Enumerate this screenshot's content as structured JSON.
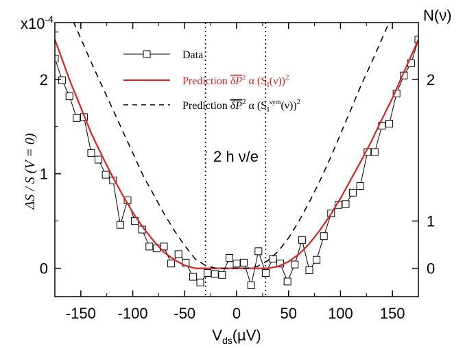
{
  "chart_data": {
    "type": "scatter",
    "xlabel_main": "V",
    "xlabel_sub": "ds",
    "xlabel_unit": "(µV)",
    "ylabel_text": "ΔS / S (V = 0)",
    "exponent_label": "x10",
    "exponent_power": "-4",
    "right_axis_label": "N(ν)",
    "xlim": [
      -175,
      175
    ],
    "ylim": [
      -0.3,
      2.6
    ],
    "xticks": [
      -150,
      -100,
      -50,
      0,
      50,
      100,
      150
    ],
    "xtick_labels": [
      "-150",
      "-100",
      "-50",
      "0",
      "50",
      "100",
      "150"
    ],
    "yticks": [
      0,
      1,
      2
    ],
    "ytick_labels": [
      "0",
      "1",
      "2"
    ],
    "right_ticks": [
      0,
      0.5,
      2
    ],
    "right_tick_labels": [
      "0",
      "1",
      "2"
    ],
    "annotation_text": "2 h ν/e",
    "annotation_x_range": [
      -30,
      28
    ],
    "annotation_y": 1.23,
    "vlines_x": [
      -30,
      28
    ],
    "series": [
      {
        "name": "Data",
        "style": "markers-line",
        "color": "#000000",
        "x": [
          -175,
          -168,
          -161,
          -154,
          -147,
          -140,
          -133,
          -126,
          -119,
          -112,
          -105,
          -98,
          -91,
          -84,
          -77,
          -70,
          -63,
          -56,
          -49,
          -42,
          -35,
          -28,
          -21,
          -14,
          -7,
          0,
          7,
          14,
          21,
          28,
          35,
          42,
          49,
          56,
          63,
          70,
          77,
          84,
          91,
          98,
          105,
          112,
          119,
          126,
          133,
          140,
          147,
          154,
          161,
          168,
          175
        ],
        "y": [
          2.22,
          1.99,
          1.82,
          1.59,
          1.6,
          1.22,
          1.15,
          0.99,
          0.93,
          0.46,
          0.72,
          0.5,
          0.41,
          0.23,
          0.21,
          0.23,
          0.05,
          0.15,
          0.06,
          -0.09,
          -0.15,
          -0.05,
          -0.06,
          -0.07,
          0.11,
          0.05,
          0.06,
          -0.18,
          0.18,
          -0.05,
          0.1,
          0.05,
          -0.14,
          0.04,
          0.3,
          -0.02,
          0.09,
          0.34,
          0.58,
          0.67,
          0.68,
          0.8,
          0.87,
          1.23,
          1.23,
          1.51,
          1.53,
          1.85,
          2.04,
          2.17,
          2.42
        ]
      },
      {
        "name": "Prediction",
        "style": "solid",
        "color": "#e02020",
        "x": [
          -175,
          -160,
          -150,
          -140,
          -130,
          -120,
          -110,
          -100,
          -90,
          -80,
          -70,
          -60,
          -50,
          -40,
          -30,
          -20,
          -10,
          0,
          10,
          20,
          30,
          40,
          50,
          60,
          70,
          80,
          90,
          100,
          110,
          120,
          130,
          140,
          150,
          160,
          175
        ],
        "y": [
          2.42,
          1.97,
          1.7,
          1.43,
          1.2,
          0.98,
          0.78,
          0.59,
          0.43,
          0.29,
          0.17,
          0.09,
          0.03,
          0.0,
          0.0,
          0.0,
          0.0,
          0.0,
          0.0,
          0.0,
          0.0,
          0.02,
          0.07,
          0.15,
          0.26,
          0.4,
          0.56,
          0.74,
          0.94,
          1.14,
          1.35,
          1.58,
          1.8,
          2.05,
          2.42
        ]
      },
      {
        "name": "Prediction",
        "style": "dashed",
        "color": "#000000",
        "x": [
          -175,
          -160,
          -150,
          -140,
          -130,
          -120,
          -110,
          -100,
          -90,
          -80,
          -70,
          -60,
          -50,
          -40,
          -30,
          -20,
          -10,
          0,
          10,
          20,
          30,
          40,
          50,
          60,
          70,
          80,
          90,
          100,
          110,
          120,
          130,
          140,
          150,
          160,
          175
        ],
        "y": [
          2.9,
          2.68,
          2.43,
          2.18,
          1.94,
          1.7,
          1.46,
          1.22,
          0.98,
          0.78,
          0.58,
          0.4,
          0.24,
          0.1,
          0.03,
          0.0,
          0.0,
          0.0,
          0.0,
          0.02,
          0.08,
          0.18,
          0.32,
          0.5,
          0.7,
          0.92,
          1.16,
          1.42,
          1.68,
          1.94,
          2.18,
          2.43,
          2.68,
          2.9,
          3.1
        ]
      }
    ],
    "legend": {
      "placement": "top-center",
      "entries": [
        {
          "label": "Data",
          "color": "#000000"
        },
        {
          "label": "Prediction",
          "color": "#e02020"
        },
        {
          "label": "Prediction",
          "color": "#000000"
        }
      ]
    }
  }
}
